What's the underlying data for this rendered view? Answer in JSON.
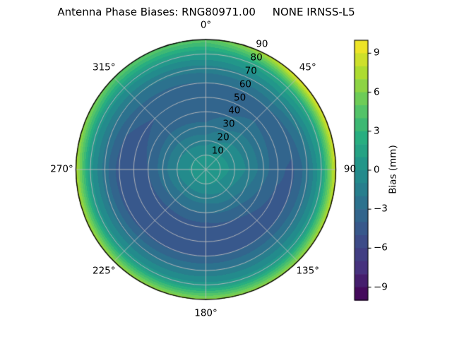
{
  "title": "Antenna Phase Biases: RNG80971.00     NONE IRNSS-L5",
  "polar": {
    "angle_tick_labels": [
      {
        "text": "0°",
        "deg": 0
      },
      {
        "text": "45°",
        "deg": 45
      },
      {
        "text": "90",
        "deg": 90
      },
      {
        "text": "135°",
        "deg": 135
      },
      {
        "text": "180°",
        "deg": 180
      },
      {
        "text": "225°",
        "deg": 225
      },
      {
        "text": "270°",
        "deg": 270
      },
      {
        "text": "315°",
        "deg": 315
      }
    ],
    "radial_tick_labels": [
      {
        "text": "10",
        "value": 10
      },
      {
        "text": "20",
        "value": 20
      },
      {
        "text": "30",
        "value": 30
      },
      {
        "text": "40",
        "value": 40
      },
      {
        "text": "50",
        "value": 50
      },
      {
        "text": "60",
        "value": 60
      },
      {
        "text": "70",
        "value": 70
      },
      {
        "text": "80",
        "value": 80
      },
      {
        "text": "90",
        "value": 90
      }
    ],
    "radial_label_angle_deg": 22.5,
    "grid_color": "#bdbdbd",
    "edge_color": "#000000"
  },
  "colorbar": {
    "label": "Bias (mm)",
    "tick_labels": [
      {
        "text": "9",
        "value": 9
      },
      {
        "text": "6",
        "value": 6
      },
      {
        "text": "3",
        "value": 3
      },
      {
        "text": "0",
        "value": 0
      },
      {
        "text": "−3",
        "value": -3
      },
      {
        "text": "−6",
        "value": -6
      },
      {
        "text": "−9",
        "value": -9
      }
    ]
  },
  "chart_data": {
    "type": "heatmap",
    "projection": "polar",
    "title": "Antenna Phase Biases: RNG80971.00     NONE IRNSS-L5",
    "colorbar_label": "Bias (mm)",
    "units": "mm",
    "colormap": "viridis",
    "vmin": -10,
    "vmax": 10,
    "level_step": 1,
    "n_levels": 20,
    "zenith_deg": [
      0,
      10,
      20,
      30,
      40,
      50,
      60,
      70,
      80,
      90
    ],
    "azimuth_deg": [
      0,
      45,
      90,
      135,
      180,
      225,
      270,
      315
    ],
    "bias_mm": [
      [
        0.5,
        0.0,
        -1.5,
        -2.8,
        -3.6,
        -3.8,
        -3.0,
        -1.5,
        1.0,
        4.8
      ],
      [
        0.5,
        0.3,
        -0.5,
        -1.5,
        -2.5,
        -3.2,
        -3.0,
        -1.0,
        2.0,
        9.5
      ],
      [
        0.5,
        0.5,
        -0.3,
        -1.2,
        -2.5,
        -3.8,
        -4.2,
        -2.5,
        1.0,
        9.0
      ],
      [
        0.5,
        0.2,
        -1.0,
        -2.5,
        -3.8,
        -4.5,
        -4.0,
        -2.0,
        0.5,
        7.0
      ],
      [
        0.5,
        0.0,
        -1.5,
        -3.0,
        -4.5,
        -5.0,
        -4.0,
        -2.0,
        0.5,
        6.5
      ],
      [
        0.5,
        0.0,
        -1.5,
        -3.0,
        -4.5,
        -5.0,
        -4.2,
        -2.2,
        0.5,
        7.0
      ],
      [
        0.5,
        0.2,
        -1.0,
        -2.5,
        -4.0,
        -4.8,
        -4.5,
        -2.5,
        0.5,
        8.0
      ],
      [
        0.5,
        0.0,
        -1.2,
        -2.5,
        -3.5,
        -4.0,
        -3.5,
        -2.0,
        0.5,
        5.2
      ]
    ],
    "colormap_anchors": [
      {
        "t": 0.0,
        "color": "#440154"
      },
      {
        "t": 0.125,
        "color": "#46327e"
      },
      {
        "t": 0.25,
        "color": "#3b528b"
      },
      {
        "t": 0.375,
        "color": "#2c728e"
      },
      {
        "t": 0.5,
        "color": "#21918c"
      },
      {
        "t": 0.625,
        "color": "#28ae80"
      },
      {
        "t": 0.75,
        "color": "#5ec962"
      },
      {
        "t": 0.875,
        "color": "#addc30"
      },
      {
        "t": 1.0,
        "color": "#fde725"
      }
    ]
  }
}
